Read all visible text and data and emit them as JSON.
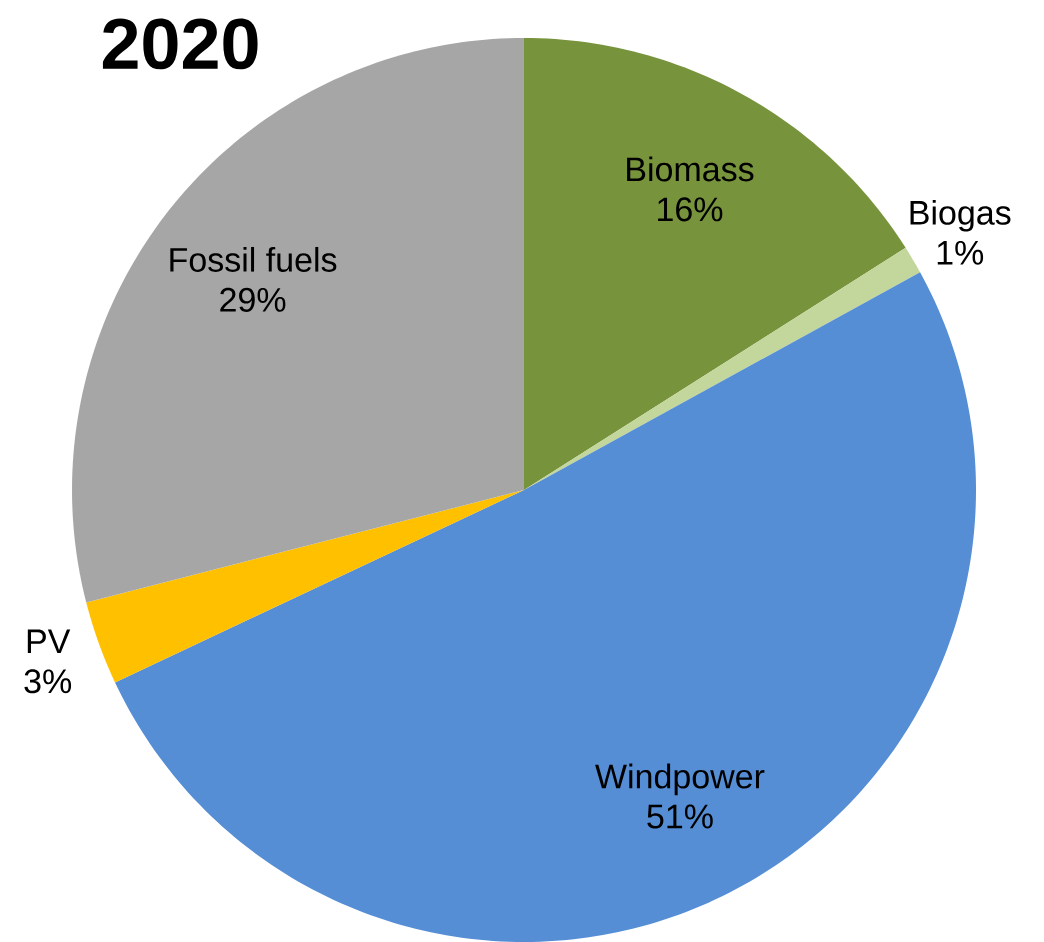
{
  "chart_data": {
    "type": "pie",
    "title": "2020",
    "categories": [
      "Biomass",
      "Biogas",
      "Windpower",
      "PV",
      "Fossil fuels"
    ],
    "values": [
      16,
      1,
      51,
      3,
      29
    ],
    "value_labels": [
      "16%",
      "1%",
      "51%",
      "3%",
      "29%"
    ],
    "colors": [
      "#77933c",
      "#c3d69b",
      "#558ed5",
      "#ffc000",
      "#a6a6a6"
    ]
  }
}
